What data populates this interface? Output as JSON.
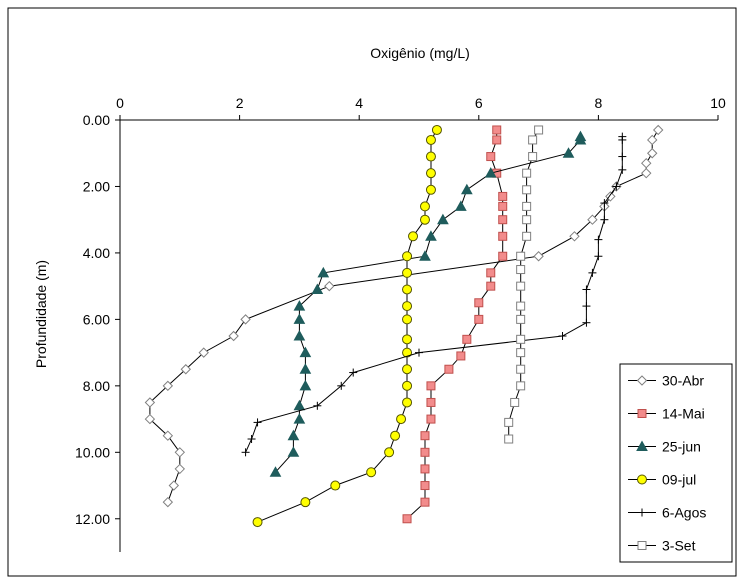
{
  "chart_data": {
    "type": "line",
    "title": "",
    "xlabel": "Oxigênio (mg/L)",
    "ylabel": "Profundidade (m)",
    "x_axis_position": "top",
    "y_axis_inverted": true,
    "xlim": [
      0,
      10
    ],
    "ylim": [
      0,
      13
    ],
    "x_ticks": [
      0,
      2,
      4,
      6,
      8,
      10
    ],
    "x_tick_labels": [
      "0",
      "2",
      "4",
      "6",
      "8",
      "10"
    ],
    "y_ticks": [
      0,
      2,
      4,
      6,
      8,
      10,
      12
    ],
    "y_tick_labels": [
      "0.00",
      "2.00",
      "4.00",
      "6.00",
      "8.00",
      "10.00",
      "12.00"
    ],
    "grid": false,
    "legend_position": "right",
    "series": [
      {
        "name": "30-Abr",
        "color": "#808080",
        "marker": "diamond-open",
        "points": [
          [
            9.0,
            0.3
          ],
          [
            8.9,
            0.6
          ],
          [
            8.9,
            1.0
          ],
          [
            8.8,
            1.3
          ],
          [
            8.8,
            1.6
          ],
          [
            8.3,
            2.0
          ],
          [
            8.2,
            2.3
          ],
          [
            8.1,
            2.6
          ],
          [
            7.9,
            3.0
          ],
          [
            7.6,
            3.5
          ],
          [
            7.0,
            4.1
          ],
          [
            3.5,
            5.0
          ],
          [
            2.1,
            6.0
          ],
          [
            1.9,
            6.5
          ],
          [
            1.4,
            7.0
          ],
          [
            1.1,
            7.5
          ],
          [
            0.8,
            8.0
          ],
          [
            0.5,
            8.5
          ],
          [
            0.5,
            9.0
          ],
          [
            0.8,
            9.5
          ],
          [
            1.0,
            10.0
          ],
          [
            1.0,
            10.5
          ],
          [
            0.9,
            11.0
          ],
          [
            0.8,
            11.5
          ]
        ]
      },
      {
        "name": "14-Mai",
        "color": "#c0504d",
        "marker": "square",
        "points": [
          [
            6.3,
            0.3
          ],
          [
            6.3,
            0.6
          ],
          [
            6.2,
            1.1
          ],
          [
            6.3,
            1.6
          ],
          [
            6.4,
            2.3
          ],
          [
            6.4,
            2.6
          ],
          [
            6.4,
            3.0
          ],
          [
            6.4,
            3.5
          ],
          [
            6.4,
            4.1
          ],
          [
            6.2,
            4.6
          ],
          [
            6.2,
            5.0
          ],
          [
            6.0,
            5.5
          ],
          [
            6.0,
            6.0
          ],
          [
            5.8,
            6.6
          ],
          [
            5.7,
            7.1
          ],
          [
            5.5,
            7.5
          ],
          [
            5.2,
            8.0
          ],
          [
            5.2,
            8.5
          ],
          [
            5.2,
            9.0
          ],
          [
            5.1,
            9.5
          ],
          [
            5.1,
            10.0
          ],
          [
            5.1,
            10.5
          ],
          [
            5.1,
            11.0
          ],
          [
            5.1,
            11.5
          ],
          [
            4.8,
            12.0
          ]
        ]
      },
      {
        "name": "25-jun",
        "color": "#1f5c5c",
        "marker": "triangle",
        "points": [
          [
            7.7,
            0.5
          ],
          [
            7.7,
            0.6
          ],
          [
            7.5,
            1.0
          ],
          [
            6.2,
            1.6
          ],
          [
            5.8,
            2.1
          ],
          [
            5.7,
            2.6
          ],
          [
            5.4,
            3.0
          ],
          [
            5.2,
            3.5
          ],
          [
            5.1,
            4.1
          ],
          [
            3.4,
            4.6
          ],
          [
            3.3,
            5.1
          ],
          [
            3.0,
            5.6
          ],
          [
            3.0,
            6.0
          ],
          [
            3.0,
            6.5
          ],
          [
            3.1,
            7.0
          ],
          [
            3.1,
            7.5
          ],
          [
            3.1,
            8.0
          ],
          [
            3.0,
            8.6
          ],
          [
            3.0,
            9.0
          ],
          [
            2.9,
            9.5
          ],
          [
            2.9,
            10.0
          ],
          [
            2.6,
            10.6
          ]
        ]
      },
      {
        "name": "09-jul",
        "color": "#d4c800",
        "marker": "circle",
        "points": [
          [
            5.3,
            0.3
          ],
          [
            5.2,
            0.6
          ],
          [
            5.2,
            1.1
          ],
          [
            5.2,
            1.6
          ],
          [
            5.2,
            2.1
          ],
          [
            5.1,
            2.6
          ],
          [
            5.1,
            3.0
          ],
          [
            4.9,
            3.5
          ],
          [
            4.8,
            4.1
          ],
          [
            4.8,
            4.6
          ],
          [
            4.8,
            5.1
          ],
          [
            4.8,
            5.6
          ],
          [
            4.8,
            6.0
          ],
          [
            4.8,
            6.6
          ],
          [
            4.8,
            7.0
          ],
          [
            4.8,
            7.5
          ],
          [
            4.8,
            8.0
          ],
          [
            4.8,
            8.5
          ],
          [
            4.7,
            9.0
          ],
          [
            4.6,
            9.5
          ],
          [
            4.5,
            10.0
          ],
          [
            4.2,
            10.6
          ],
          [
            3.6,
            11.0
          ],
          [
            3.1,
            11.5
          ],
          [
            2.3,
            12.1
          ]
        ]
      },
      {
        "name": "6-Agos",
        "color": "#000000",
        "marker": "plus",
        "points": [
          [
            8.4,
            0.5
          ],
          [
            8.4,
            0.6
          ],
          [
            8.4,
            1.1
          ],
          [
            8.4,
            1.5
          ],
          [
            8.3,
            2.0
          ],
          [
            8.1,
            2.5
          ],
          [
            8.1,
            3.0
          ],
          [
            8.0,
            3.6
          ],
          [
            8.0,
            4.1
          ],
          [
            7.9,
            4.6
          ],
          [
            7.8,
            5.1
          ],
          [
            7.8,
            5.6
          ],
          [
            7.8,
            6.1
          ],
          [
            7.4,
            6.5
          ],
          [
            5.0,
            7.0
          ],
          [
            3.9,
            7.6
          ],
          [
            3.7,
            8.0
          ],
          [
            3.3,
            8.6
          ],
          [
            2.3,
            9.1
          ],
          [
            2.2,
            9.6
          ],
          [
            2.1,
            10.0
          ]
        ]
      },
      {
        "name": "3-Set",
        "color": "#808080",
        "marker": "square-open",
        "points": [
          [
            7.0,
            0.3
          ],
          [
            6.9,
            0.6
          ],
          [
            6.9,
            1.1
          ],
          [
            6.8,
            1.6
          ],
          [
            6.8,
            2.1
          ],
          [
            6.8,
            2.6
          ],
          [
            6.8,
            3.0
          ],
          [
            6.8,
            3.5
          ],
          [
            6.7,
            4.1
          ],
          [
            6.7,
            4.5
          ],
          [
            6.7,
            5.0
          ],
          [
            6.7,
            5.6
          ],
          [
            6.7,
            6.0
          ],
          [
            6.7,
            6.6
          ],
          [
            6.7,
            7.0
          ],
          [
            6.7,
            7.5
          ],
          [
            6.7,
            8.0
          ],
          [
            6.6,
            8.5
          ],
          [
            6.5,
            9.1
          ],
          [
            6.5,
            9.6
          ]
        ]
      }
    ]
  }
}
